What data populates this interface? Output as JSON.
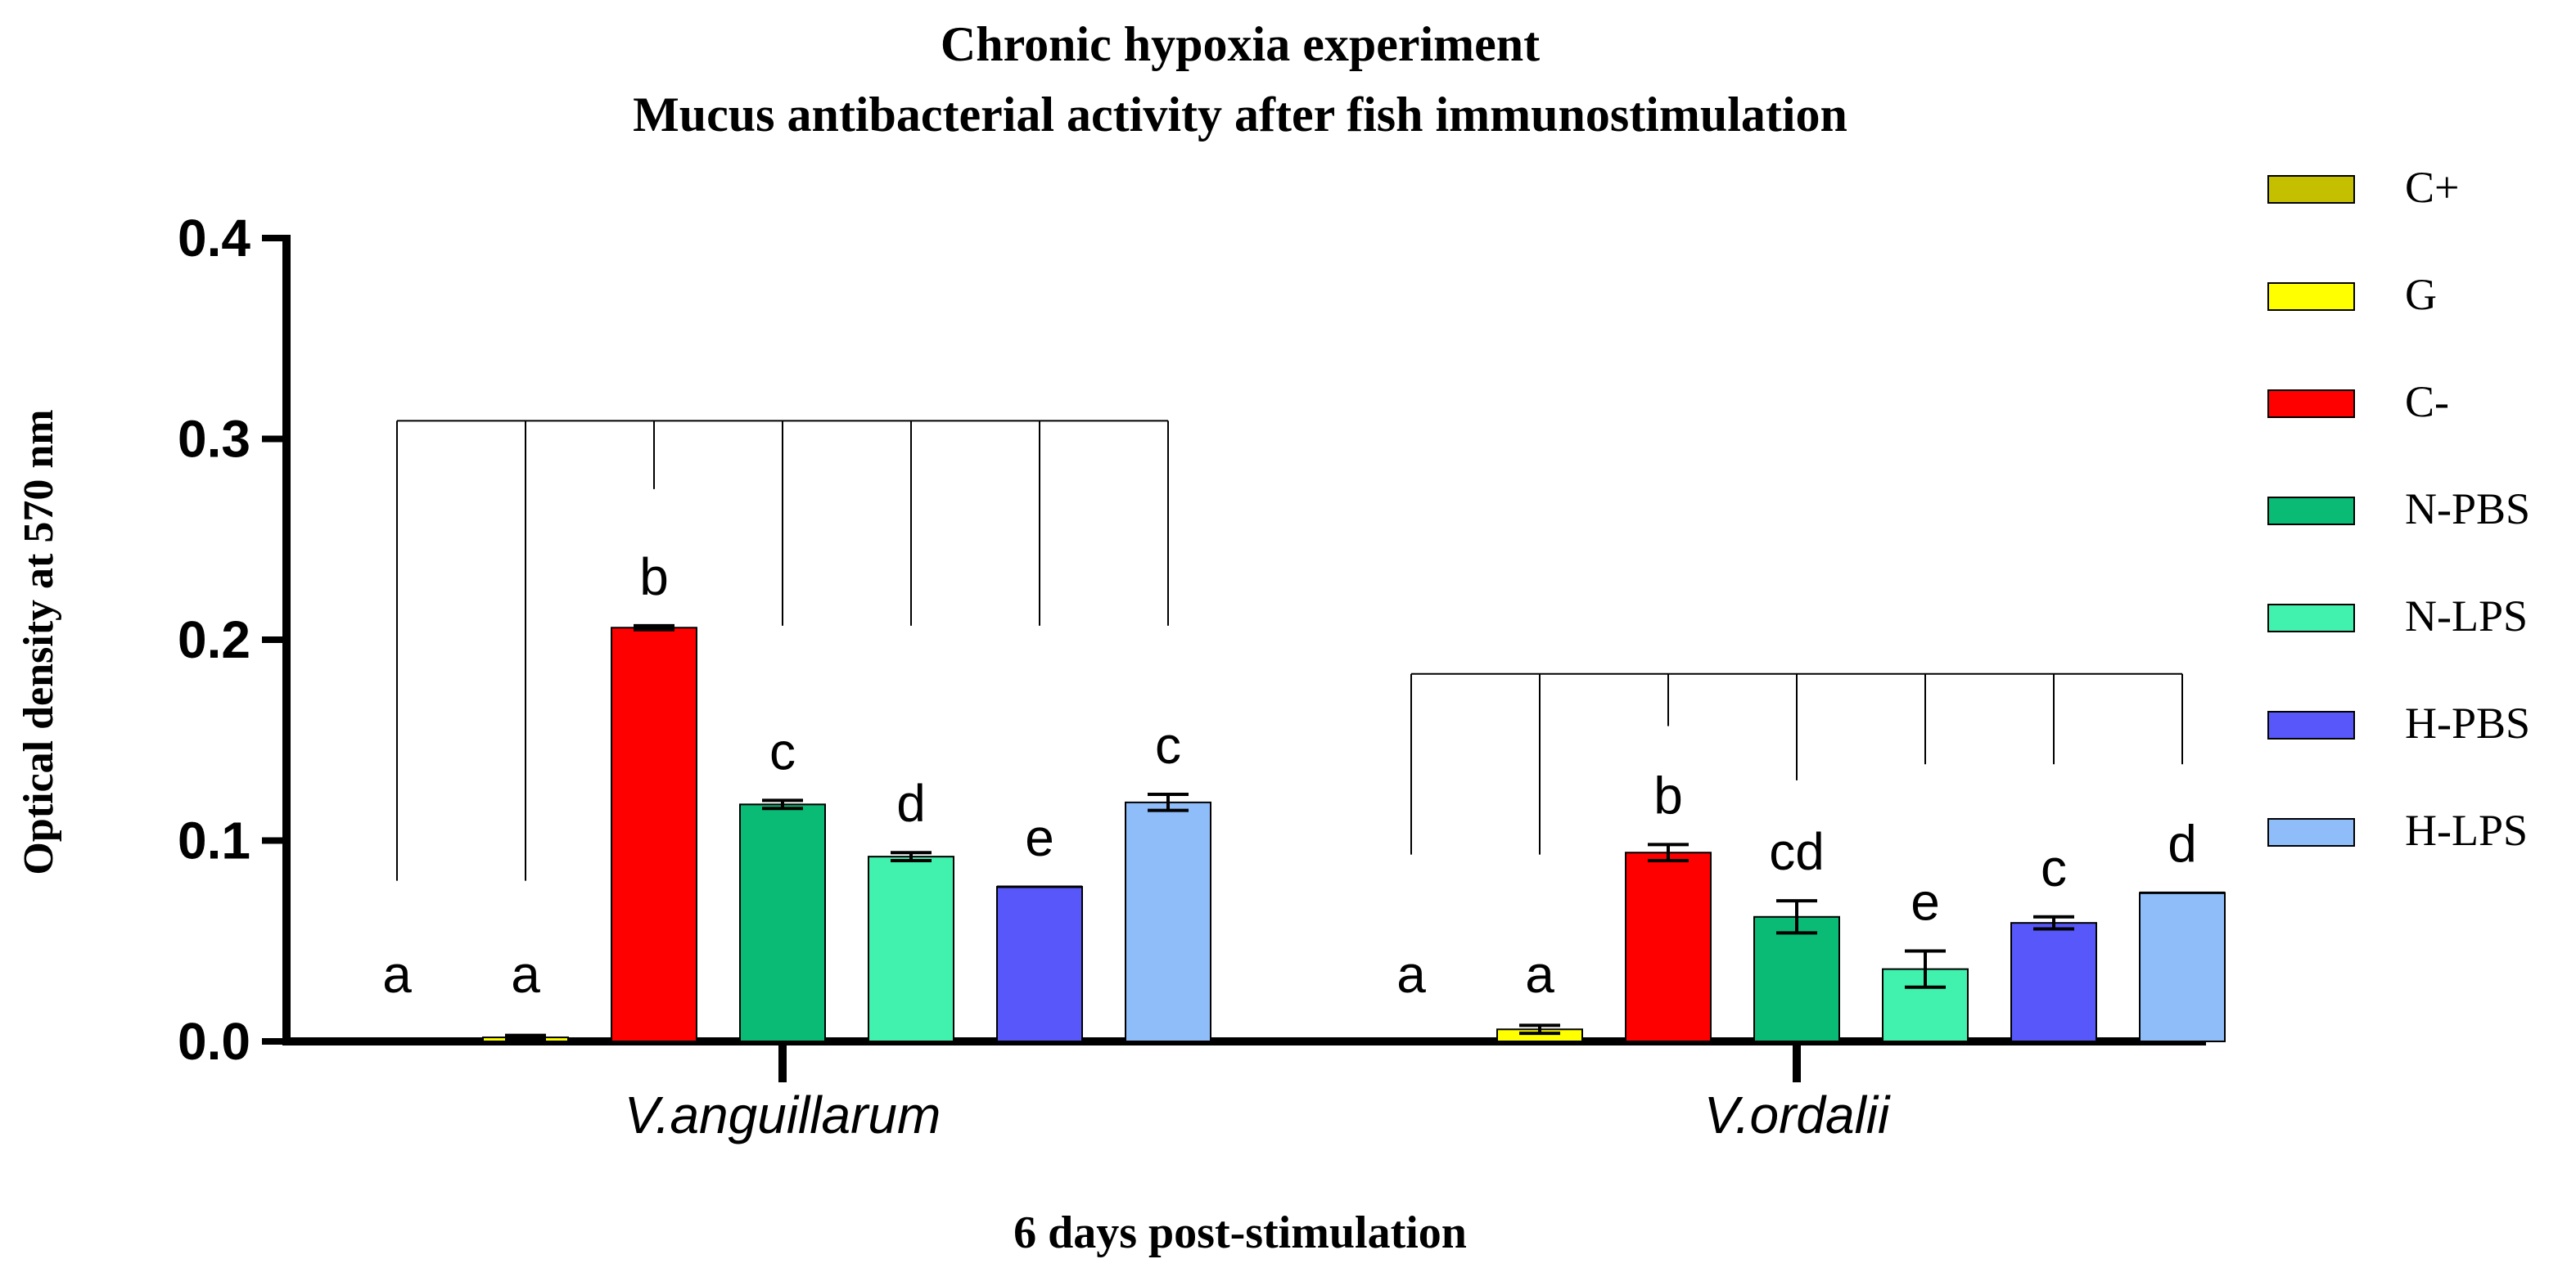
{
  "chart_data": {
    "type": "bar",
    "title": "Chronic hypoxia experiment",
    "subtitle": "Mucus antibacterial activity after fish immunostimulation",
    "xlabel": "6 days post-stimulation",
    "ylabel": "Optical density at 570 nm",
    "ylim": [
      0,
      0.4
    ],
    "yticks": [
      "0.0",
      "0.1",
      "0.2",
      "0.3",
      "0.4"
    ],
    "grid": false,
    "legend_position": "right",
    "categories": [
      "V.anguillarum",
      "V.ordalii"
    ],
    "series": [
      {
        "name": "C+",
        "color": "#c4c000",
        "values": [
          0.0,
          0.0
        ],
        "errors": [
          0.0,
          0.0
        ],
        "letters": [
          "a",
          "a"
        ]
      },
      {
        "name": "G",
        "color": "#ffff00",
        "values": [
          0.002,
          0.006
        ],
        "errors": [
          0.001,
          0.002
        ],
        "letters": [
          "a",
          "a"
        ]
      },
      {
        "name": "C-",
        "color": "#ff0000",
        "values": [
          0.206,
          0.094
        ],
        "errors": [
          0.001,
          0.004
        ],
        "letters": [
          "b",
          "b"
        ]
      },
      {
        "name": "N-PBS",
        "color": "#09bb74",
        "values": [
          0.118,
          0.062
        ],
        "errors": [
          0.002,
          0.008
        ],
        "letters": [
          "c",
          "cd"
        ]
      },
      {
        "name": "N-LPS",
        "color": "#40f2ad",
        "values": [
          0.092,
          0.036
        ],
        "errors": [
          0.002,
          0.009
        ],
        "letters": [
          "d",
          "e"
        ]
      },
      {
        "name": "H-PBS",
        "color": "#5757fa",
        "values": [
          0.077,
          0.059
        ],
        "errors": [
          0.0,
          0.003
        ],
        "letters": [
          "e",
          "c"
        ]
      },
      {
        "name": "H-LPS",
        "color": "#8fbdf9",
        "values": [
          0.119,
          0.074
        ],
        "errors": [
          0.004,
          0.0
        ],
        "letters": [
          "c",
          "d"
        ]
      }
    ],
    "comparison_brackets": [
      {
        "category": "V.anguillarum",
        "top": 0.309,
        "drop_ends": [
          0.08,
          0.08,
          0.275,
          0.207,
          0.207,
          0.207,
          0.207
        ]
      },
      {
        "category": "V.ordalii",
        "top": 0.183,
        "drop_ends": [
          0.093,
          0.093,
          0.157,
          0.13,
          0.138,
          0.138,
          0.138
        ]
      }
    ]
  }
}
